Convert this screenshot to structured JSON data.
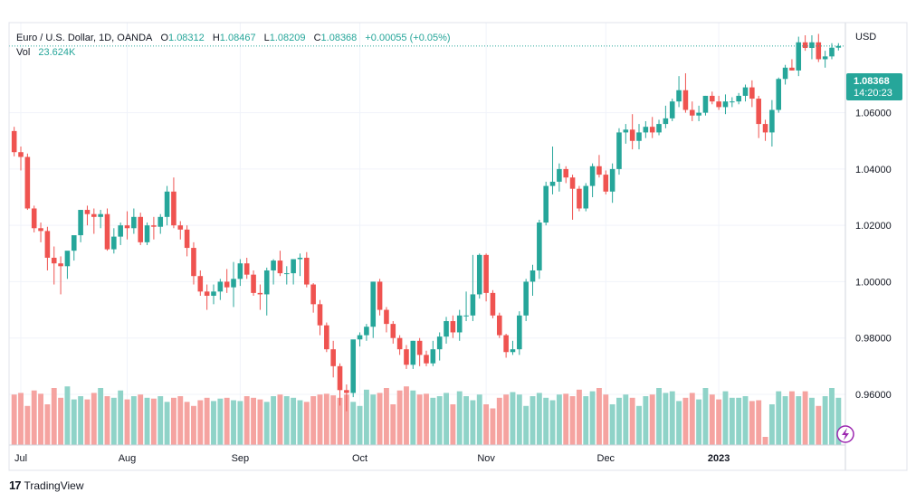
{
  "header": {
    "symbol": "Euro / U.S. Dollar, 1D, OANDA",
    "open_label": "O",
    "open": "1.08312",
    "high_label": "H",
    "high": "1.08467",
    "low_label": "L",
    "low": "1.08209",
    "close_label": "C",
    "close": "1.08368",
    "change": "+0.00055 (+0.05%)",
    "vol_label": "Vol",
    "vol": "23.624K"
  },
  "price_scale": {
    "currency": "USD",
    "last_price": "1.08368",
    "countdown": "14:20:23"
  },
  "footer": {
    "brand": "TradingView"
  },
  "colors": {
    "up": "#26a69a",
    "down": "#ef5350",
    "up_vol": "#8fd3c8",
    "down_vol": "#f5a3a0",
    "grid": "#f0f3fa"
  },
  "chart_data": {
    "type": "candlestick",
    "y_ticks": [
      "1.06000",
      "1.04000",
      "1.02000",
      "1.00000",
      "0.98000",
      "0.96000"
    ],
    "x_ticks": [
      "Jul",
      "Aug",
      "Sep",
      "Oct",
      "Nov",
      "Dec",
      "2023"
    ],
    "ylim": [
      0.942,
      1.092
    ],
    "last_close": 1.08368,
    "series": [
      {
        "name": "open",
        "values": [
          1.0535,
          1.046,
          1.0443,
          1.026,
          1.019,
          1.018,
          1.0085,
          1.0065,
          1.0055,
          1.011,
          1.0165,
          1.0255,
          1.024,
          1.023,
          1.024,
          1.0115,
          1.016,
          1.02,
          1.019,
          1.023,
          1.014,
          1.02,
          1.0195,
          1.023,
          1.032,
          1.02,
          1.0185,
          1.012,
          1.002,
          0.9965,
          0.995,
          0.9965,
          1.0,
          0.998,
          1.001,
          1.0065,
          1.0025,
          0.996,
          0.9955,
          1.004,
          1.0075,
          1.003,
          1.003,
          1.008,
          1.0085,
          0.999,
          0.992,
          0.9845,
          0.976,
          0.97,
          0.9615,
          0.9605,
          0.9795,
          0.981,
          0.984,
          1.0,
          0.99,
          0.985,
          0.98,
          0.976,
          0.9705,
          0.979,
          0.974,
          0.971,
          0.976,
          0.9805,
          0.986,
          0.982,
          0.988,
          0.988,
          0.9955,
          1.0095,
          0.996,
          0.988,
          0.981,
          0.975,
          0.976,
          0.988,
          1.0,
          1.004,
          1.021,
          1.034,
          1.0355,
          1.04,
          1.037,
          1.033,
          1.026,
          1.034,
          1.041,
          1.038,
          1.032,
          1.04,
          1.053,
          1.054,
          1.05,
          1.053,
          1.055,
          1.053,
          1.056,
          1.058,
          1.064,
          1.068,
          1.061,
          1.059,
          1.06,
          1.066,
          1.064,
          1.062,
          1.064,
          1.064,
          1.066,
          1.069,
          1.065,
          1.056,
          1.053,
          1.061,
          1.072,
          1.076,
          1.075,
          1.085,
          1.083,
          1.085,
          1.079,
          1.08,
          1.0831
        ]
      },
      {
        "name": "high",
        "values": [
          1.055,
          1.048,
          1.0455,
          1.027,
          1.021,
          1.0195,
          1.0125,
          1.009,
          1.009,
          1.016,
          1.0255,
          1.027,
          1.026,
          1.0255,
          1.026,
          1.019,
          1.021,
          1.025,
          1.026,
          1.0245,
          1.021,
          1.023,
          1.024,
          1.034,
          1.037,
          1.0215,
          1.02,
          1.014,
          1.004,
          0.999,
          0.999,
          1.001,
          1.0045,
          1.007,
          1.008,
          1.0085,
          1.004,
          0.999,
          1.005,
          1.008,
          1.011,
          1.0055,
          1.008,
          1.01,
          1.0105,
          0.9995,
          0.9935,
          0.9855,
          0.979,
          0.971,
          0.9635,
          0.9755,
          0.982,
          0.985,
          1.0,
          1.001,
          0.991,
          0.986,
          0.981,
          0.9775,
          0.979,
          0.98,
          0.9755,
          0.979,
          0.982,
          0.9875,
          0.988,
          0.99,
          0.9965,
          1.0095,
          1.01,
          1.01,
          0.997,
          0.989,
          0.9815,
          0.979,
          0.9895,
          1.001,
          1.006,
          1.022,
          1.0355,
          1.048,
          1.042,
          1.041,
          1.038,
          1.034,
          1.035,
          1.042,
          1.045,
          1.0395,
          1.042,
          1.0545,
          1.056,
          1.0595,
          1.056,
          1.057,
          1.0585,
          1.0575,
          1.0625,
          1.065,
          1.073,
          1.074,
          1.064,
          1.0625,
          1.066,
          1.0675,
          1.066,
          1.0665,
          1.0655,
          1.067,
          1.07,
          1.0715,
          1.066,
          1.0575,
          1.0645,
          1.0725,
          1.077,
          1.079,
          1.087,
          1.0875,
          1.0875,
          1.088,
          1.082,
          1.0847,
          1.0847
        ]
      },
      {
        "name": "low",
        "values": [
          1.0445,
          1.0395,
          1.0255,
          1.0175,
          1.014,
          1.004,
          0.999,
          0.9955,
          1.001,
          1.0075,
          1.014,
          1.02,
          1.017,
          1.019,
          1.011,
          1.01,
          1.013,
          1.015,
          1.017,
          1.013,
          1.013,
          1.015,
          1.017,
          1.02,
          1.019,
          1.015,
          1.009,
          0.999,
          0.995,
          0.99,
          0.992,
          0.9935,
          0.996,
          0.991,
          0.9985,
          1.001,
          0.995,
          0.99,
          0.988,
          0.999,
          1.002,
          0.999,
          0.999,
          1.002,
          0.998,
          0.989,
          0.981,
          0.975,
          0.966,
          0.956,
          0.954,
          0.959,
          0.977,
          0.979,
          0.98,
          0.988,
          0.982,
          0.978,
          0.974,
          0.969,
          0.969,
          0.97,
          0.97,
          0.97,
          0.972,
          0.978,
          0.98,
          0.979,
          0.986,
          0.986,
          0.994,
          0.993,
          0.987,
          0.98,
          0.973,
          0.974,
          0.974,
          0.986,
          0.995,
          1.001,
          1.02,
          1.031,
          1.032,
          1.035,
          1.022,
          1.025,
          1.025,
          1.03,
          1.037,
          1.031,
          1.028,
          1.038,
          1.049,
          1.047,
          1.047,
          1.051,
          1.051,
          1.052,
          1.0545,
          1.057,
          1.062,
          1.06,
          1.057,
          1.057,
          1.059,
          1.063,
          1.061,
          1.0595,
          1.062,
          1.063,
          1.064,
          1.062,
          1.051,
          1.05,
          1.048,
          1.06,
          1.07,
          1.075,
          1.073,
          1.082,
          1.079,
          1.078,
          1.076,
          1.079,
          1.0821
        ]
      },
      {
        "name": "close",
        "values": [
          1.046,
          1.0443,
          1.026,
          1.019,
          1.018,
          1.0085,
          1.0065,
          1.0055,
          1.011,
          1.0165,
          1.0255,
          1.024,
          1.023,
          1.024,
          1.0115,
          1.016,
          1.02,
          1.019,
          1.023,
          1.014,
          1.02,
          1.0195,
          1.023,
          1.032,
          1.02,
          1.0185,
          1.012,
          1.002,
          0.9965,
          0.995,
          0.9965,
          1.0,
          0.998,
          1.001,
          1.0065,
          1.0025,
          0.996,
          0.9955,
          1.004,
          1.0075,
          1.003,
          1.003,
          1.008,
          1.0085,
          0.999,
          0.992,
          0.9845,
          0.976,
          0.97,
          0.9615,
          0.9605,
          0.9795,
          0.981,
          0.984,
          1.0,
          0.99,
          0.985,
          0.98,
          0.976,
          0.9705,
          0.979,
          0.974,
          0.971,
          0.976,
          0.9805,
          0.986,
          0.982,
          0.988,
          0.988,
          0.9955,
          1.0095,
          0.996,
          0.988,
          0.981,
          0.975,
          0.976,
          0.988,
          1.0,
          1.004,
          1.021,
          1.034,
          1.0355,
          1.04,
          1.037,
          1.033,
          1.026,
          1.034,
          1.041,
          1.038,
          1.032,
          1.04,
          1.053,
          1.054,
          1.05,
          1.053,
          1.055,
          1.053,
          1.056,
          1.058,
          1.064,
          1.068,
          1.061,
          1.059,
          1.06,
          1.066,
          1.064,
          1.062,
          1.064,
          1.064,
          1.066,
          1.069,
          1.065,
          1.056,
          1.053,
          1.061,
          1.072,
          1.076,
          1.075,
          1.085,
          1.083,
          1.085,
          1.079,
          1.08,
          1.0831,
          1.0837
        ]
      },
      {
        "name": "volume",
        "values": [
          62,
          64,
          48,
          67,
          63,
          50,
          70,
          58,
          72,
          56,
          60,
          56,
          64,
          70,
          60,
          58,
          67,
          56,
          60,
          62,
          58,
          57,
          60,
          53,
          58,
          60,
          53,
          48,
          55,
          58,
          54,
          57,
          58,
          55,
          54,
          60,
          58,
          56,
          53,
          60,
          62,
          60,
          58,
          55,
          53,
          60,
          62,
          63,
          61,
          58,
          62,
          53,
          48,
          68,
          62,
          64,
          70,
          50,
          67,
          72,
          67,
          62,
          63,
          58,
          60,
          64,
          50,
          66,
          60,
          55,
          62,
          50,
          45,
          58,
          62,
          65,
          62,
          48,
          60,
          64,
          58,
          55,
          62,
          63,
          60,
          68,
          60,
          66,
          70,
          62,
          50,
          58,
          62,
          58,
          48,
          60,
          62,
          70,
          64,
          66,
          54,
          58,
          64,
          56,
          70,
          62,
          56,
          66,
          58,
          58,
          60,
          54,
          55,
          10,
          50,
          66,
          60,
          66,
          60,
          66,
          58,
          48,
          60,
          70,
          58
        ]
      }
    ]
  }
}
